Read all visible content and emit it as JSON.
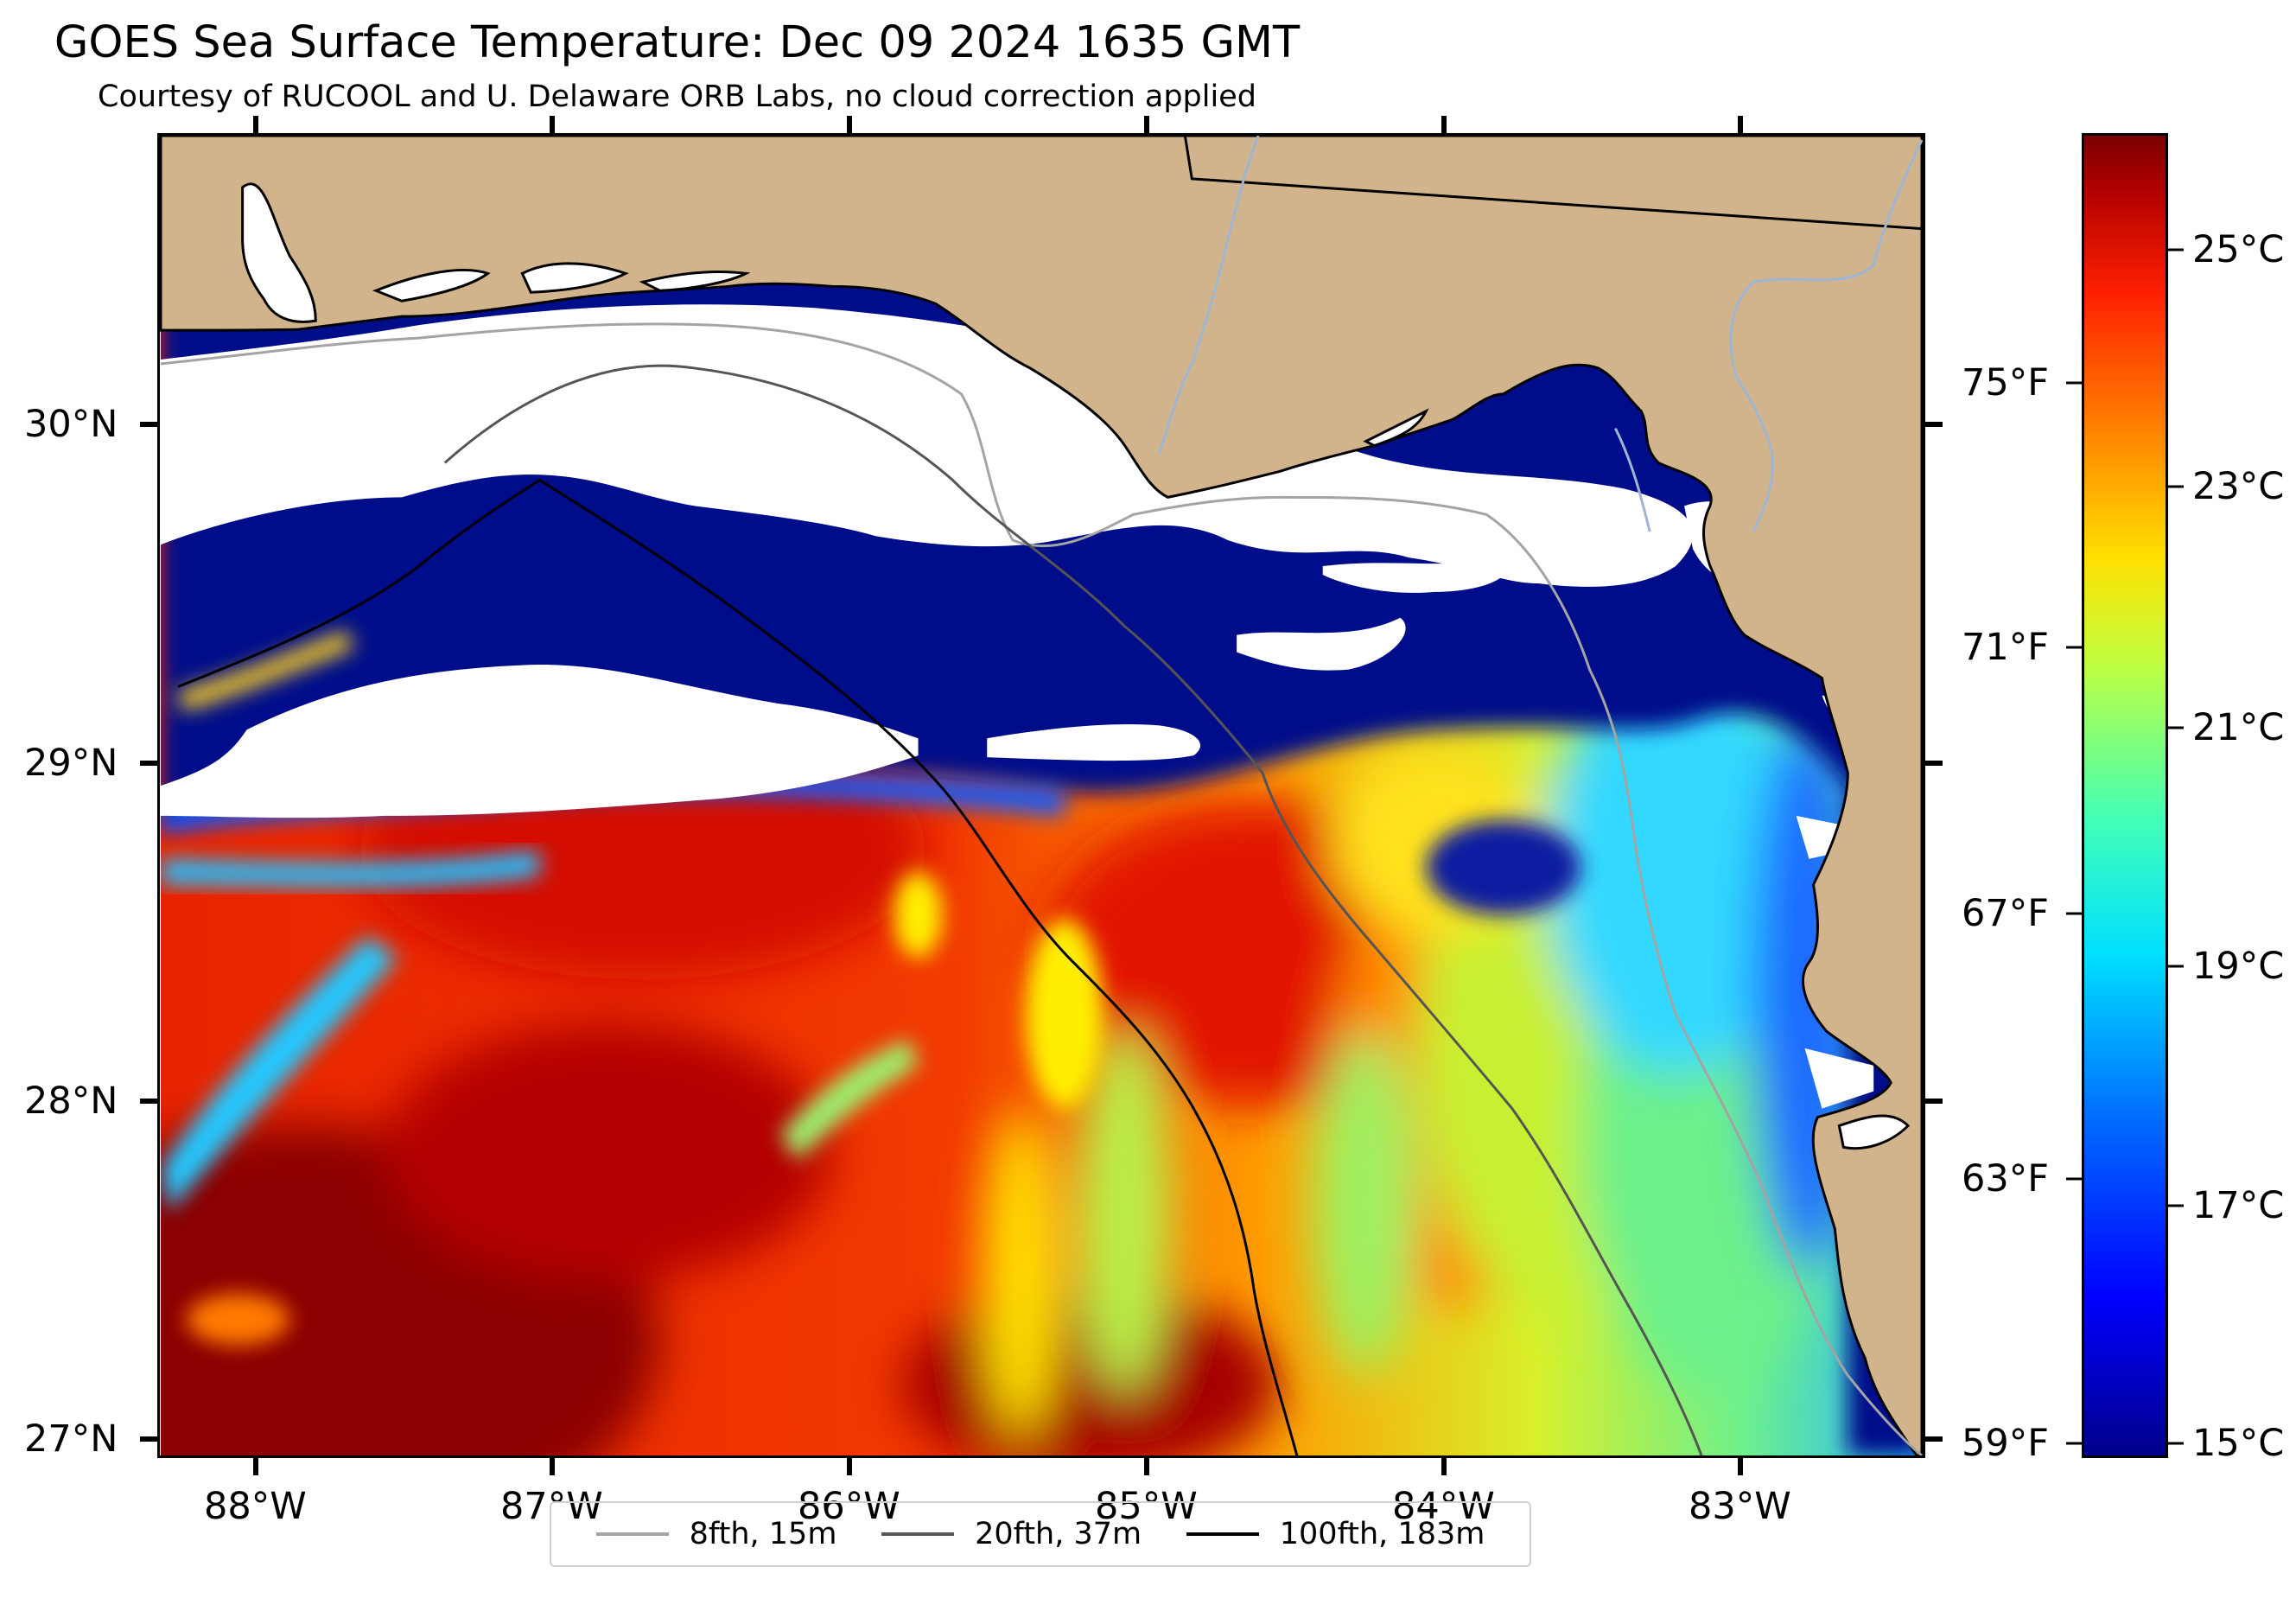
{
  "map": {
    "title": "GOES Sea Surface Temperature: Dec 09 2024 1635 GMT",
    "subtitle": "Courtesy of RUCOOL and U. Delaware ORB Labs, no cloud correction applied",
    "layers": [
      "land",
      "sea-surface-temperature",
      "cloud-no-data",
      "coastline",
      "rivers",
      "state-boundary",
      "bathymetry-contours"
    ],
    "colors": {
      "land": "#d2b48c",
      "no_data": "#ffffff",
      "river": "#9fb6d3"
    },
    "lon_labels": [
      "88°W",
      "87°W",
      "86°W",
      "85°W",
      "84°W",
      "83°W"
    ],
    "lat_labels": [
      "30°N",
      "29°N",
      "28°N",
      "27°N"
    ],
    "extent": {
      "lon": [
        -88.33,
        -82.39
      ],
      "lat": [
        26.93,
        30.86
      ]
    }
  },
  "colorbar": {
    "colormap": "jet",
    "celsius_labels": [
      "25°C",
      "23°C",
      "21°C",
      "19°C",
      "17°C",
      "15°C"
    ],
    "fahrenheit_labels": [
      "75°F",
      "71°F",
      "67°F",
      "63°F",
      "59°F"
    ],
    "range_c": [
      14.8,
      26.0
    ]
  },
  "legend": {
    "items": [
      {
        "label": "8fth, 15m",
        "color": "#a4a4a4"
      },
      {
        "label": "20fth, 37m",
        "color": "#555555"
      },
      {
        "label": "100fth, 183m",
        "color": "#000000"
      }
    ]
  }
}
